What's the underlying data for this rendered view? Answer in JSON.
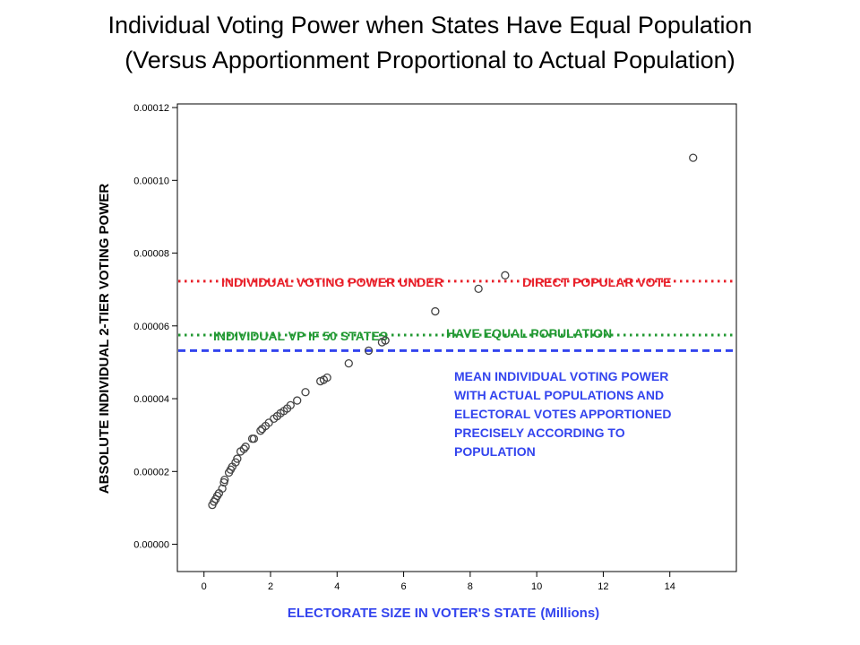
{
  "title_line1": "Individual Voting Power when States Have Equal Population",
  "title_line2": "(Versus Apportionment Proportional to Actual Population)",
  "chart_data": {
    "type": "scatter",
    "title": "Individual Voting Power when States Have Equal Population (Versus Apportionment Proportional to Actual Population)",
    "xlabel": "ELECTORATE SIZE IN VOTER'S STATE",
    "xlabel_units": "(Millions)",
    "ylabel": "ABSOLUTE INDIVIDUAL 2-TIER VOTING POWER",
    "xlim": [
      -0.8,
      16.0
    ],
    "ylim": [
      -7.5e-06,
      0.000121
    ],
    "x_ticks": [
      0,
      2,
      4,
      6,
      8,
      10,
      12,
      14
    ],
    "x_tick_labels": [
      "0",
      "2",
      "4",
      "6",
      "8",
      "10",
      "12",
      "14"
    ],
    "y_ticks": [
      0,
      2e-05,
      4e-05,
      6e-05,
      8e-05,
      0.0001,
      0.00012
    ],
    "y_tick_labels": [
      "0.00000",
      "0.00002",
      "0.00004",
      "0.00006",
      "0.00008",
      "0.00010",
      "0.00012"
    ],
    "grid": false,
    "colors": {
      "red_line": "#e8202a",
      "green_line": "#229933",
      "blue_line": "#3344ee",
      "marker": "#444444"
    },
    "reference_lines": [
      {
        "id": "direct",
        "y": 7.23e-05,
        "color": "#e8202a",
        "style": "dotted"
      },
      {
        "id": "equal",
        "y": 5.75e-05,
        "color": "#229933",
        "style": "dotted"
      },
      {
        "id": "mean",
        "y": 5.32e-05,
        "color": "#3344ee",
        "style": "dashed"
      }
    ],
    "annotations": [
      {
        "id": "direct",
        "color": "#e8202a",
        "lines": [
          "INDIVIDUAL VOTING POWER UNDER",
          "DIRECT POPULAR VOTE"
        ]
      },
      {
        "id": "equal",
        "color": "#229933",
        "lines": [
          "INDIVIDUAL VP IF 50 STATES",
          "HAVE EQUAL POPULATION"
        ]
      },
      {
        "id": "mean",
        "color": "#3344ee",
        "lines": [
          "MEAN INDIVIDUAL VOTING POWER",
          "WITH ACTUAL POPULATIONS AND",
          "ELECTORAL VOTES APPORTIONED",
          "PRECISELY ACCORDING TO",
          "POPULATION"
        ]
      }
    ],
    "points": [
      [
        0.25,
        1.08e-05
      ],
      [
        0.3,
        1.17e-05
      ],
      [
        0.35,
        1.24e-05
      ],
      [
        0.4,
        1.33e-05
      ],
      [
        0.45,
        1.4e-05
      ],
      [
        0.55,
        1.53e-05
      ],
      [
        0.6,
        1.7e-05
      ],
      [
        0.62,
        1.77e-05
      ],
      [
        0.75,
        1.97e-05
      ],
      [
        0.8,
        2.05e-05
      ],
      [
        0.85,
        2.13e-05
      ],
      [
        0.95,
        2.25e-05
      ],
      [
        1.0,
        2.35e-05
      ],
      [
        1.1,
        2.55e-05
      ],
      [
        1.2,
        2.62e-05
      ],
      [
        1.25,
        2.68e-05
      ],
      [
        1.45,
        2.9e-05
      ],
      [
        1.5,
        2.9e-05
      ],
      [
        1.7,
        3.12e-05
      ],
      [
        1.75,
        3.17e-05
      ],
      [
        1.85,
        3.25e-05
      ],
      [
        1.95,
        3.34e-05
      ],
      [
        2.1,
        3.45e-05
      ],
      [
        2.2,
        3.52e-05
      ],
      [
        2.3,
        3.6e-05
      ],
      [
        2.4,
        3.66e-05
      ],
      [
        2.5,
        3.73e-05
      ],
      [
        2.6,
        3.82e-05
      ],
      [
        2.8,
        3.95e-05
      ],
      [
        3.05,
        4.18e-05
      ],
      [
        3.5,
        4.48e-05
      ],
      [
        3.6,
        4.52e-05
      ],
      [
        3.7,
        4.58e-05
      ],
      [
        4.35,
        4.97e-05
      ],
      [
        4.95,
        5.32e-05
      ],
      [
        5.35,
        5.55e-05
      ],
      [
        5.45,
        5.6e-05
      ],
      [
        6.95,
        6.4e-05
      ],
      [
        8.25,
        7.02e-05
      ],
      [
        9.05,
        7.39e-05
      ],
      [
        14.7,
        0.0001062
      ]
    ],
    "legend": "none"
  }
}
